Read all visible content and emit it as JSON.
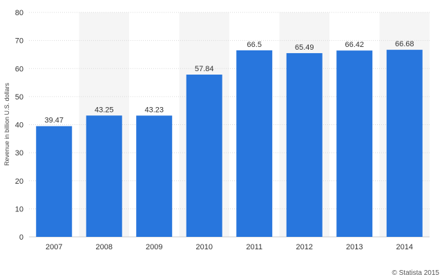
{
  "chart_data": {
    "type": "bar",
    "categories": [
      "2007",
      "2008",
      "2009",
      "2010",
      "2011",
      "2012",
      "2013",
      "2014"
    ],
    "values": [
      39.47,
      43.25,
      43.23,
      57.84,
      66.5,
      65.49,
      66.42,
      66.68
    ],
    "value_labels": [
      "39.47",
      "43.25",
      "43.23",
      "57.84",
      "66.5",
      "65.49",
      "66.42",
      "66.68"
    ],
    "title": "",
    "xlabel": "",
    "ylabel": "Revenue in billion U.S. dollars",
    "ylim": [
      0,
      80
    ],
    "yticks": [
      0,
      10,
      20,
      30,
      40,
      50,
      60,
      70,
      80
    ],
    "grid": true,
    "legend": "none",
    "colors": {
      "bar": "#2876dd",
      "band": "#f5f5f5",
      "grid": "#d9d9d9",
      "text": "#333333",
      "credit": "#555555"
    }
  },
  "credit": "© Statista 2015"
}
